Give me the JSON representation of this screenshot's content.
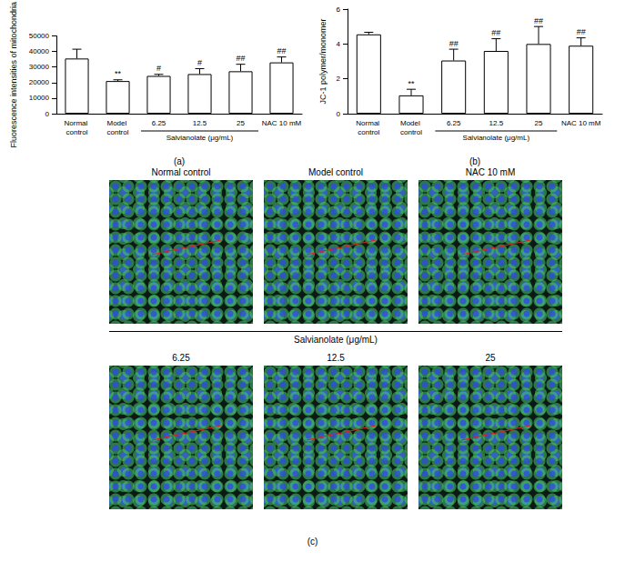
{
  "chart_data": [
    {
      "type": "bar",
      "caption": "(a)",
      "y_label": "Fluorescence intensities of mitochondria",
      "categories": [
        "Normal control",
        "Model control",
        "6.25",
        "12.5",
        "25",
        "NAC 10 mM"
      ],
      "values": [
        35500,
        21000,
        24300,
        25500,
        27300,
        33000
      ],
      "errors": [
        6000,
        800,
        1000,
        3500,
        4500,
        3500
      ],
      "annotations": [
        null,
        "**",
        "#",
        "#",
        "##",
        "##"
      ],
      "group_label": "Salvianolate (μg/mL)",
      "group_categories": [
        "6.25",
        "12.5",
        "25"
      ],
      "color": "#ffffff",
      "ylim": [
        0,
        50000
      ],
      "yticks": [
        0,
        10000,
        20000,
        30000,
        40000,
        50000
      ],
      "grid": false
    },
    {
      "type": "bar",
      "caption": "(b)",
      "y_label": "JC-1 polymer/monomer",
      "categories": [
        "Normal control",
        "Model control",
        "6.25",
        "12.5",
        "25",
        "NAC 10 mM"
      ],
      "values": [
        4.55,
        1.05,
        3.05,
        3.6,
        4.0,
        3.9
      ],
      "errors": [
        0.12,
        0.35,
        0.65,
        0.7,
        1.0,
        0.45
      ],
      "annotations": [
        null,
        "**",
        "##",
        "##",
        "##",
        "##"
      ],
      "group_label": "Salvianolate (μg/mL)",
      "group_categories": [
        "6.25",
        "12.5",
        "25"
      ],
      "color": "#ffffff",
      "ylim": [
        0,
        6
      ],
      "yticks": [
        0,
        2,
        4,
        6
      ],
      "grid": false
    }
  ],
  "image_panel": {
    "caption": "(c)",
    "group_label": "Salvianolate (μg/mL)",
    "rows": [
      [
        "Normal control",
        "Model control",
        "NAC 10 mM"
      ],
      [
        "6.25",
        "12.5",
        "25"
      ]
    ]
  }
}
